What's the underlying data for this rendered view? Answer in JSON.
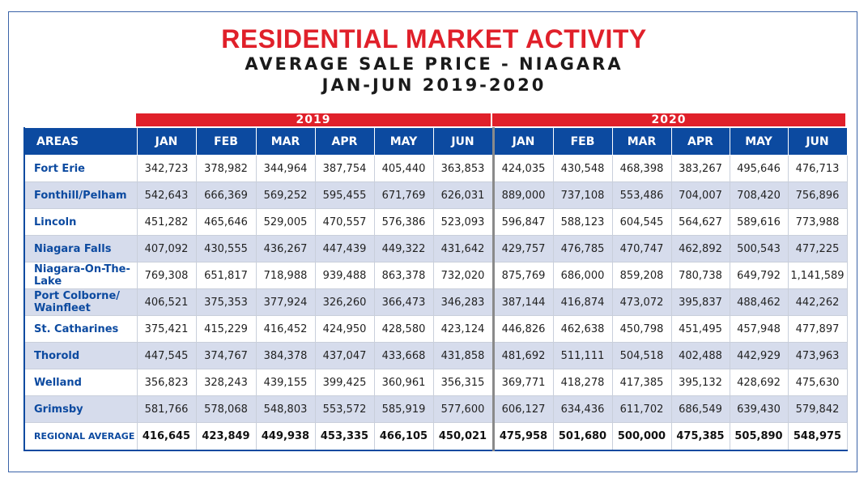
{
  "title": {
    "line1": "RESIDENTIAL MARKET ACTIVITY",
    "line2": "AVERAGE SALE PRICE - NIAGARA",
    "line3": "JAN-JUN 2019-2020"
  },
  "years": [
    "2019",
    "2020"
  ],
  "header": {
    "areas": "AREAS",
    "months": [
      "JAN",
      "FEB",
      "MAR",
      "APR",
      "MAY",
      "JUN",
      "JAN",
      "FEB",
      "MAR",
      "APR",
      "MAY",
      "JUN"
    ]
  },
  "rows": [
    {
      "area": "Fort Erie",
      "values": [
        "342,723",
        "378,982",
        "344,964",
        "387,754",
        "405,440",
        "363,853",
        "424,035",
        "430,548",
        "468,398",
        "383,267",
        "495,646",
        "476,713"
      ]
    },
    {
      "area": "Fonthill/Pelham",
      "values": [
        "542,643",
        "666,369",
        "569,252",
        "595,455",
        "671,769",
        "626,031",
        "889,000",
        "737,108",
        "553,486",
        "704,007",
        "708,420",
        "756,896"
      ]
    },
    {
      "area": "Lincoln",
      "values": [
        "451,282",
        "465,646",
        "529,005",
        "470,557",
        "576,386",
        "523,093",
        "596,847",
        "588,123",
        "604,545",
        "564,627",
        "589,616",
        "773,988"
      ]
    },
    {
      "area": "Niagara Falls",
      "values": [
        "407,092",
        "430,555",
        "436,267",
        "447,439",
        "449,322",
        "431,642",
        "429,757",
        "476,785",
        "470,747",
        "462,892",
        "500,543",
        "477,225"
      ]
    },
    {
      "area": "Niagara-On-The-Lake",
      "values": [
        "769,308",
        "651,817",
        "718,988",
        "939,488",
        "863,378",
        "732,020",
        "875,769",
        "686,000",
        "859,208",
        "780,738",
        "649,792",
        "1,141,589"
      ]
    },
    {
      "area": "Port Colborne/ Wainfleet",
      "values": [
        "406,521",
        "375,353",
        "377,924",
        "326,260",
        "366,473",
        "346,283",
        "387,144",
        "416,874",
        "473,072",
        "395,837",
        "488,462",
        "442,262"
      ]
    },
    {
      "area": "St. Catharines",
      "values": [
        "375,421",
        "415,229",
        "416,452",
        "424,950",
        "428,580",
        "423,124",
        "446,826",
        "462,638",
        "450,798",
        "451,495",
        "457,948",
        "477,897"
      ]
    },
    {
      "area": "Thorold",
      "values": [
        "447,545",
        "374,767",
        "384,378",
        "437,047",
        "433,668",
        "431,858",
        "481,692",
        "511,111",
        "504,518",
        "402,488",
        "442,929",
        "473,963"
      ]
    },
    {
      "area": "Welland",
      "values": [
        "356,823",
        "328,243",
        "439,155",
        "399,425",
        "360,961",
        "356,315",
        "369,771",
        "418,278",
        "417,385",
        "395,132",
        "428,692",
        "475,630"
      ]
    },
    {
      "area": "Grimsby",
      "values": [
        "581,766",
        "578,068",
        "548,803",
        "553,572",
        "585,919",
        "577,600",
        "606,127",
        "634,436",
        "611,702",
        "686,549",
        "639,430",
        "579,842"
      ]
    }
  ],
  "total": {
    "area": "REGIONAL AVERAGE",
    "values": [
      "416,645",
      "423,849",
      "449,938",
      "453,335",
      "466,105",
      "450,021",
      "475,958",
      "501,680",
      "500,000",
      "475,385",
      "505,890",
      "548,975"
    ]
  },
  "colors": {
    "accent_red": "#e0202a",
    "header_blue": "#0c4aa0",
    "stripe": "#d6dcec"
  }
}
